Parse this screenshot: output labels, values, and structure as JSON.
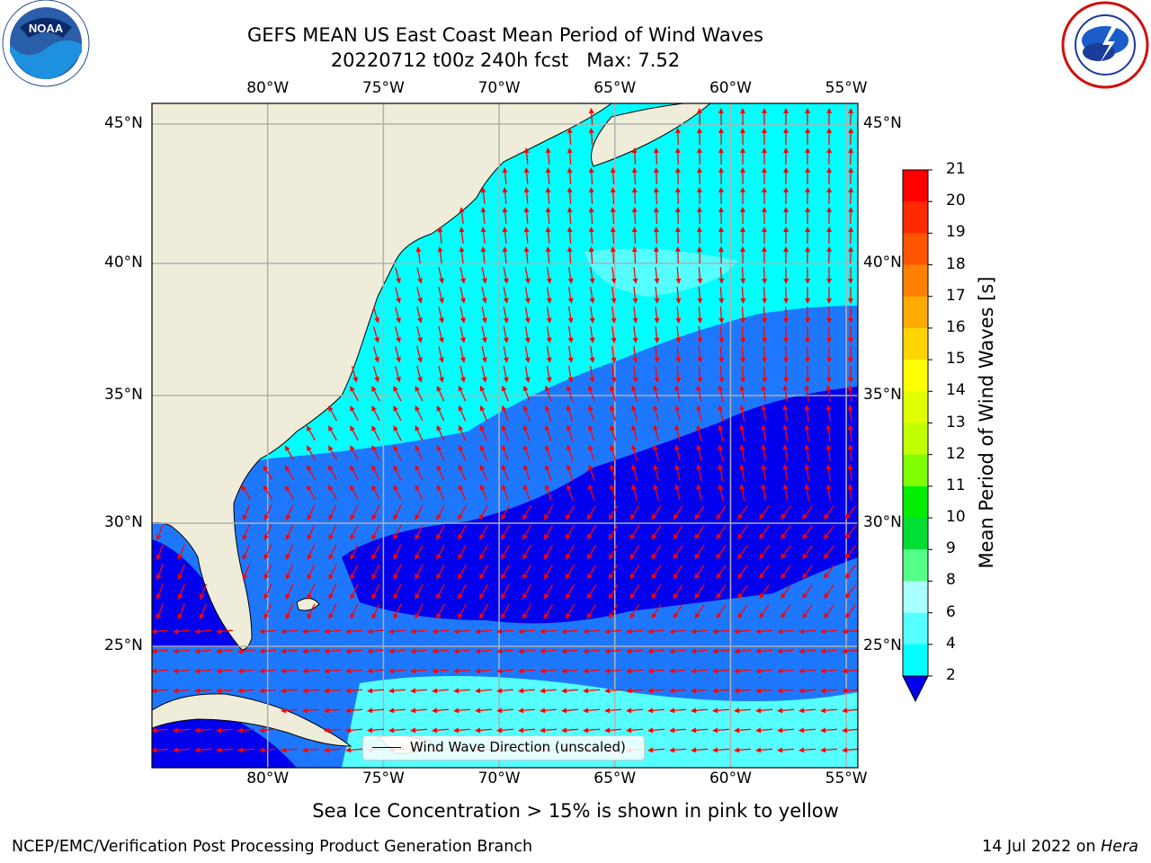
{
  "header": {
    "title_line1": "GEFS MEAN US East Coast Mean Period of Wind Waves",
    "title_line2": "20220712 t00z 240h fcst   Max: 7.52",
    "left_logo": "noaa-logo",
    "right_logo": "nws-logo",
    "left_logo_text": "NOAA",
    "left_logo_ring": "NATIONAL OCEANIC AND ATMOSPHERIC ADMINISTRATION · U.S. DEPARTMENT OF COMMERCE",
    "right_logo_ring": "NATIONAL WEATHER SERVICE"
  },
  "map": {
    "lon_labels": [
      "80°W",
      "75°W",
      "70°W",
      "65°W",
      "60°W",
      "55°W"
    ],
    "lat_labels": [
      "45°N",
      "40°N",
      "35°N",
      "30°N",
      "25°N"
    ],
    "lon_extent": [
      -85,
      -54.5
    ],
    "lat_extent": [
      20.5,
      46
    ],
    "colors": {
      "land": "#efedd9",
      "band_lt2": "#0000ee",
      "band_2_4": "#1e78ff",
      "band_4_6": "#00ffff",
      "band_6_8": "#55ffff",
      "arrow": "#ff0000",
      "grid": "#b0b0b0"
    },
    "legend_label": "Wind Wave Direction (unscaled)"
  },
  "colorbar": {
    "title": "Mean Period of Wind Waves [s]",
    "ticks": [
      "21",
      "20",
      "19",
      "18",
      "17",
      "16",
      "15",
      "14",
      "13",
      "12",
      "11",
      "10",
      "9",
      "8",
      "6",
      "4",
      "2"
    ],
    "colors": [
      "#ff0000",
      "#ff2a00",
      "#ff5500",
      "#ff8000",
      "#ffaa00",
      "#ffd500",
      "#ffff00",
      "#e0ff00",
      "#c0ff00",
      "#80ff00",
      "#00ee00",
      "#00dd33",
      "#55ff88",
      "#aaffff",
      "#55ffff",
      "#00ffff",
      "#1e78ff"
    ],
    "extend_color": "#0000ee"
  },
  "subtitle": "Sea Ice Concentration > 15% is shown in pink to yellow",
  "footer": {
    "left": "NCEP/EMC/Verification Post Processing Product Generation Branch",
    "right_prefix": "14 Jul 2022 on ",
    "right_machine": "Hera"
  }
}
